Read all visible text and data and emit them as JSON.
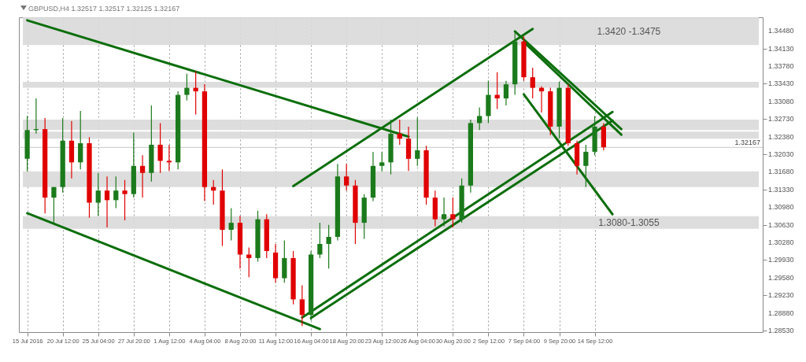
{
  "chart_data": {
    "type": "candlestick",
    "title": "GBPUSD,H4 1.32517 1.32517 1.32125 1.32167",
    "categories": [
      "15 Jul 2016",
      null,
      null,
      null,
      "20 Jul 12:00",
      null,
      null,
      null,
      "25 Jul 04:00",
      null,
      null,
      null,
      "27 Jul 20:00",
      null,
      null,
      null,
      "1 Aug 12:00",
      null,
      null,
      null,
      "4 Aug 04:00",
      null,
      null,
      null,
      "8 Aug 20:00",
      null,
      null,
      null,
      "11 Aug 12:00",
      null,
      null,
      null,
      "16 Aug 04:00",
      null,
      null,
      null,
      "18 Aug 20:00",
      null,
      null,
      null,
      "23 Aug 12:00",
      null,
      null,
      null,
      "26 Aug 04:00",
      null,
      null,
      null,
      "30 Aug 20:00",
      null,
      null,
      null,
      "2 Sep 12:00",
      null,
      null,
      null,
      "7 Sep 04:00",
      null,
      null,
      null,
      "9 Sep 20:00",
      null,
      null,
      null,
      "14 Sep 12:00",
      null,
      null,
      null,
      null,
      null,
      null,
      null,
      null,
      null,
      null,
      null,
      null,
      null,
      null,
      null,
      null,
      null,
      null
    ],
    "ohlc": [
      [
        1.3194,
        1.3279,
        1.3169,
        1.3251
      ],
      [
        1.3251,
        1.3314,
        1.3244,
        1.3253
      ],
      [
        1.3253,
        1.3275,
        1.3086,
        1.3117
      ],
      [
        1.3117,
        1.3138,
        1.3067,
        1.3138
      ],
      [
        1.3138,
        1.3275,
        1.3127,
        1.323
      ],
      [
        1.323,
        1.3269,
        1.3155,
        1.3187
      ],
      [
        1.3187,
        1.3289,
        1.3173,
        1.3225
      ],
      [
        1.3225,
        1.3237,
        1.3077,
        1.3107
      ],
      [
        1.3107,
        1.3166,
        1.3081,
        1.3131
      ],
      [
        1.3131,
        1.3159,
        1.3058,
        1.3112
      ],
      [
        1.3112,
        1.3159,
        1.3096,
        1.3131
      ],
      [
        1.3131,
        1.3152,
        1.3072,
        1.3124
      ],
      [
        1.3124,
        1.3246,
        1.3117,
        1.318
      ],
      [
        1.318,
        1.3201,
        1.3117,
        1.3166
      ],
      [
        1.3166,
        1.33,
        1.3149,
        1.3222
      ],
      [
        1.3222,
        1.3265,
        1.3166,
        1.319
      ],
      [
        1.319,
        1.3222,
        1.317,
        1.3187
      ],
      [
        1.3187,
        1.3328,
        1.3173,
        1.3321
      ],
      [
        1.3321,
        1.3363,
        1.331,
        1.3335
      ],
      [
        1.3335,
        1.3368,
        1.3282,
        1.3328
      ],
      [
        1.3328,
        1.3342,
        1.311,
        1.3138
      ],
      [
        1.3138,
        1.3152,
        1.3103,
        1.3131
      ],
      [
        1.3131,
        1.3173,
        1.3021,
        1.3053
      ],
      [
        1.3053,
        1.3096,
        1.3032,
        1.3067
      ],
      [
        1.3067,
        1.3081,
        1.2976,
        1.3004
      ],
      [
        1.3004,
        1.3018,
        1.2959,
        1.2997
      ],
      [
        1.2997,
        1.3091,
        1.299,
        1.3074
      ],
      [
        1.3074,
        1.3084,
        1.2997,
        1.3011
      ],
      [
        1.3008,
        1.3025,
        1.2948,
        1.2957
      ],
      [
        1.2957,
        1.3032,
        1.2948,
        1.2997
      ],
      [
        1.2997,
        1.3011,
        1.2905,
        1.2915
      ],
      [
        1.2915,
        1.2943,
        1.2862,
        1.2884
      ],
      [
        1.2884,
        1.3011,
        1.2873,
        1.3004
      ],
      [
        1.3004,
        1.3067,
        1.2997,
        1.3025
      ],
      [
        1.3025,
        1.3063,
        1.2976,
        1.3039
      ],
      [
        1.3039,
        1.3184,
        1.3032,
        1.3159
      ],
      [
        1.3159,
        1.3184,
        1.3131,
        1.3141
      ],
      [
        1.3141,
        1.3152,
        1.3025,
        1.3067
      ],
      [
        1.3067,
        1.3124,
        1.3035,
        1.3117
      ],
      [
        1.3117,
        1.3208,
        1.311,
        1.318
      ],
      [
        1.318,
        1.3208,
        1.3169,
        1.3187
      ],
      [
        1.3187,
        1.3272,
        1.3163,
        1.3244
      ],
      [
        1.3244,
        1.3272,
        1.3222,
        1.3234
      ],
      [
        1.3234,
        1.3258,
        1.317,
        1.3194
      ],
      [
        1.3194,
        1.3276,
        1.318,
        1.3211
      ],
      [
        1.3211,
        1.322,
        1.3103,
        1.3117
      ],
      [
        1.3117,
        1.3131,
        1.306,
        1.3074
      ],
      [
        1.3074,
        1.3117,
        1.306,
        1.3084
      ],
      [
        1.3084,
        1.3117,
        1.3058,
        1.3074
      ],
      [
        1.3074,
        1.3155,
        1.3067,
        1.3141
      ],
      [
        1.3141,
        1.3272,
        1.3127,
        1.3265
      ],
      [
        1.3265,
        1.3296,
        1.3251,
        1.3279
      ],
      [
        1.3279,
        1.3349,
        1.3265,
        1.3321
      ],
      [
        1.3321,
        1.3366,
        1.3293,
        1.3314
      ],
      [
        1.3314,
        1.3349,
        1.33,
        1.3342
      ],
      [
        1.3342,
        1.3445,
        1.3321,
        1.3427
      ],
      [
        1.3427,
        1.3437,
        1.3349,
        1.3356
      ],
      [
        1.3356,
        1.3375,
        1.3314,
        1.3335
      ],
      [
        1.3335,
        1.3338,
        1.3286,
        1.3328
      ],
      [
        1.3328,
        1.3335,
        1.3241,
        1.3258
      ],
      [
        1.3258,
        1.3347,
        1.3234,
        1.3335
      ],
      [
        1.3335,
        1.3342,
        1.322,
        1.3225
      ],
      [
        1.3225,
        1.323,
        1.3163,
        1.318
      ],
      [
        1.318,
        1.3222,
        1.3138,
        1.3208
      ],
      [
        1.3208,
        1.3279,
        1.3201,
        1.3258
      ],
      [
        1.3258,
        1.3265,
        1.3211,
        1.3217
      ],
      null,
      null,
      null,
      null,
      null,
      null,
      null,
      null,
      null,
      null,
      null,
      null,
      null,
      null,
      null,
      null,
      null
    ],
    "series": [
      {
        "type": "line",
        "color": "#0b6e0b",
        "values": [
          1.3469,
          null,
          null,
          null,
          null,
          null,
          null,
          null,
          null,
          null,
          null,
          null,
          null,
          null,
          null,
          null,
          null,
          null,
          null,
          null,
          null,
          null,
          null,
          null,
          null,
          null,
          null,
          null,
          null,
          null,
          null,
          null,
          null,
          null,
          null,
          null,
          null,
          null,
          null,
          null,
          null,
          null,
          null,
          1.3238,
          null,
          null,
          null,
          null,
          null,
          null,
          null,
          null,
          null,
          null,
          null,
          null,
          null,
          null,
          null,
          null,
          null,
          null,
          null,
          null,
          null,
          null,
          null,
          null,
          null,
          null,
          null,
          null,
          null,
          null,
          null,
          null,
          null,
          null,
          null,
          null,
          null,
          null,
          null
        ]
      },
      {
        "type": "line",
        "color": "#0b6e0b",
        "values": [
          1.3086,
          null,
          null,
          null,
          null,
          null,
          null,
          null,
          null,
          null,
          null,
          null,
          null,
          null,
          null,
          null,
          null,
          null,
          null,
          null,
          null,
          null,
          null,
          null,
          null,
          null,
          null,
          null,
          null,
          null,
          null,
          null,
          null,
          1.2856,
          null,
          null,
          null,
          null,
          null,
          null,
          null,
          null,
          null,
          null,
          null,
          null,
          null,
          null,
          null,
          null,
          null,
          null,
          null,
          null,
          null,
          null,
          null,
          null,
          null,
          null,
          null,
          null,
          null,
          null,
          null,
          null,
          null,
          null,
          null,
          null,
          null,
          null,
          null,
          null,
          null,
          null,
          null,
          null,
          null,
          null,
          null,
          null,
          null
        ]
      },
      {
        "type": "line",
        "color": "#0b6e0b",
        "values": [
          null,
          null,
          null,
          null,
          null,
          null,
          null,
          null,
          null,
          null,
          null,
          null,
          null,
          null,
          null,
          null,
          null,
          null,
          null,
          null,
          null,
          null,
          null,
          null,
          null,
          null,
          null,
          null,
          null,
          null,
          1.314,
          null,
          null,
          null,
          null,
          null,
          null,
          null,
          null,
          null,
          null,
          null,
          null,
          null,
          null,
          null,
          null,
          null,
          null,
          null,
          null,
          null,
          null,
          null,
          null,
          null,
          null,
          1.3452,
          null,
          null,
          null,
          null,
          null,
          null,
          null,
          null,
          null,
          null,
          null,
          null,
          null,
          null,
          null,
          null,
          null,
          null,
          null,
          null,
          null,
          null,
          null,
          null,
          null
        ]
      },
      {
        "type": "line",
        "color": "#0b6e0b",
        "values": [
          null,
          null,
          null,
          null,
          null,
          null,
          null,
          null,
          null,
          null,
          null,
          null,
          null,
          null,
          null,
          null,
          null,
          null,
          null,
          null,
          null,
          null,
          null,
          null,
          null,
          null,
          null,
          null,
          null,
          null,
          null,
          1.2879,
          null,
          null,
          null,
          null,
          null,
          null,
          null,
          null,
          null,
          null,
          null,
          null,
          null,
          null,
          null,
          null,
          null,
          null,
          null,
          null,
          null,
          null,
          null,
          null,
          null,
          null,
          null,
          null,
          null,
          null,
          null,
          null,
          null,
          null,
          1.3287,
          null,
          null,
          null,
          null,
          null,
          null,
          null,
          null,
          null,
          null,
          null,
          null,
          null,
          null,
          null,
          null
        ]
      },
      {
        "type": "line",
        "color": "#0b6e0b",
        "values": [
          null,
          null,
          null,
          null,
          null,
          null,
          null,
          null,
          null,
          null,
          null,
          null,
          null,
          null,
          null,
          null,
          null,
          null,
          null,
          null,
          null,
          null,
          null,
          null,
          null,
          null,
          null,
          null,
          null,
          null,
          null,
          null,
          1.2878,
          null,
          null,
          null,
          null,
          null,
          null,
          null,
          null,
          null,
          null,
          null,
          null,
          null,
          null,
          null,
          null,
          null,
          null,
          null,
          null,
          null,
          null,
          null,
          null,
          null,
          null,
          null,
          null,
          null,
          null,
          null,
          null,
          null,
          1.327,
          null,
          null,
          null,
          null,
          null,
          null,
          null,
          null,
          null,
          null,
          null,
          null,
          null,
          null,
          null,
          null
        ]
      },
      {
        "type": "line",
        "color": "#0b6e0b",
        "values": [
          null,
          null,
          null,
          null,
          null,
          null,
          null,
          null,
          null,
          null,
          null,
          null,
          null,
          null,
          null,
          null,
          null,
          null,
          null,
          null,
          null,
          null,
          null,
          null,
          null,
          null,
          null,
          null,
          null,
          null,
          null,
          null,
          null,
          null,
          null,
          null,
          null,
          null,
          null,
          null,
          null,
          null,
          null,
          null,
          null,
          null,
          null,
          null,
          null,
          null,
          null,
          null,
          null,
          null,
          null,
          1.3447,
          null,
          null,
          null,
          null,
          null,
          null,
          null,
          null,
          null,
          null,
          null,
          1.3253,
          null,
          null,
          null,
          null,
          null,
          null,
          null,
          null,
          null,
          null,
          null,
          null,
          null,
          null,
          null
        ]
      },
      {
        "type": "line",
        "color": "#0b6e0b",
        "values": [
          null,
          null,
          null,
          null,
          null,
          null,
          null,
          null,
          null,
          null,
          null,
          null,
          null,
          null,
          null,
          null,
          null,
          null,
          null,
          null,
          null,
          null,
          null,
          null,
          null,
          null,
          null,
          null,
          null,
          null,
          null,
          null,
          null,
          null,
          null,
          null,
          null,
          null,
          null,
          null,
          null,
          null,
          null,
          null,
          null,
          null,
          null,
          null,
          null,
          null,
          null,
          null,
          null,
          null,
          null,
          null,
          1.3426,
          null,
          null,
          null,
          null,
          null,
          null,
          null,
          null,
          null,
          null,
          1.3242,
          null,
          null,
          null,
          null,
          null,
          null,
          null,
          null,
          null,
          null,
          null,
          null,
          null,
          null,
          null
        ]
      },
      {
        "type": "line",
        "color": "#0b6e0b",
        "values": [
          null,
          null,
          null,
          null,
          null,
          null,
          null,
          null,
          null,
          null,
          null,
          null,
          null,
          null,
          null,
          null,
          null,
          null,
          null,
          null,
          null,
          null,
          null,
          null,
          null,
          null,
          null,
          null,
          null,
          null,
          null,
          null,
          null,
          null,
          null,
          null,
          null,
          null,
          null,
          null,
          null,
          null,
          null,
          null,
          null,
          null,
          null,
          null,
          null,
          null,
          null,
          null,
          null,
          null,
          null,
          null,
          1.3322,
          null,
          null,
          null,
          null,
          null,
          null,
          null,
          null,
          null,
          1.3084,
          null,
          null,
          null,
          null,
          null,
          null,
          null,
          null,
          null,
          null,
          null,
          null,
          null,
          null,
          null,
          null
        ]
      }
    ],
    "bands": [
      {
        "axis": "y",
        "from": 1.342,
        "to": 1.3475,
        "label": "1.3420 -1.3475",
        "color": "#d9d9d9"
      },
      {
        "axis": "y",
        "from": 1.3251,
        "to": 1.3272,
        "color": "#d9d9d9"
      },
      {
        "axis": "y",
        "from": 1.3335,
        "to": 1.3347,
        "color": "#d9d9d9"
      },
      {
        "axis": "y",
        "from": 1.3234,
        "to": 1.3248,
        "color": "#d9d9d9"
      },
      {
        "axis": "y",
        "from": 1.3138,
        "to": 1.3169,
        "color": "#d9d9d9"
      },
      {
        "axis": "y",
        "from": 1.3055,
        "to": 1.308,
        "label": "1.3080-1.3055",
        "color": "#d9d9d9"
      }
    ],
    "ref_lines": [
      {
        "axis": "y",
        "value": 1.32167,
        "label": "1.32167",
        "color": "#c8c8c8"
      }
    ],
    "ylim": [
      1.285,
      1.3475
    ],
    "yticks": [
      {
        "value": 1.2853,
        "label": "1.28530"
      },
      {
        "value": 1.2888,
        "label": "1.28880"
      },
      {
        "value": 1.2923,
        "label": "1.29230"
      },
      {
        "value": 1.2958,
        "label": "1.29580"
      },
      {
        "value": 1.2993,
        "label": "1.29930"
      },
      {
        "value": 1.3028,
        "label": "1.30280"
      },
      {
        "value": 1.3063,
        "label": "1.30630"
      },
      {
        "value": 1.3098,
        "label": "1.30980"
      },
      {
        "value": 1.3133,
        "label": "1.31330"
      },
      {
        "value": 1.3168,
        "label": "1.31680"
      },
      {
        "value": 1.3203,
        "label": "1.32030"
      },
      {
        "value": 1.3238,
        "label": "1.32380"
      },
      {
        "value": 1.3273,
        "label": "1.32730"
      },
      {
        "value": 1.3308,
        "label": "1.33080"
      },
      {
        "value": 1.3343,
        "label": "1.33430"
      },
      {
        "value": 1.3378,
        "label": "1.33780"
      },
      {
        "value": 1.3413,
        "label": "1.34130"
      },
      {
        "value": 1.3448,
        "label": "1.34480"
      }
    ],
    "grid": "x"
  }
}
